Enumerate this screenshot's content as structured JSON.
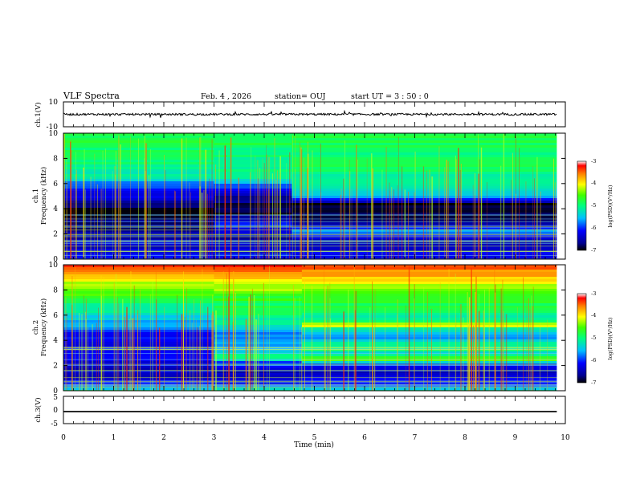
{
  "header": {
    "title": "VLF Spectra",
    "date": "Feb. 4 , 2026",
    "station": "station= OUJ",
    "start": "start UT =  3 : 50 : 0"
  },
  "chart_data": [
    {
      "id": "ch1-waveform",
      "type": "line",
      "ylabel": "ch.1(V)",
      "ylim": [
        -10,
        10
      ],
      "yticks": [
        "10",
        "-10"
      ],
      "baseline": 0,
      "noise_amplitude": 0.8,
      "x_end_min": 9.83
    },
    {
      "id": "ch1-spectrogram",
      "type": "heatmap",
      "ylabel_lines": [
        "ch.1",
        "Frequency (kHz)"
      ],
      "ylim": [
        0,
        10
      ],
      "yticks": [
        "0",
        "2",
        "4",
        "6",
        "8",
        "10"
      ],
      "x_end_min": 9.83,
      "colorbar": {
        "label": "log(PSD)(V²/Hz)",
        "range": [
          -7,
          -3
        ],
        "ticks": [
          "-3",
          "-4",
          "-5",
          "-6",
          "-7"
        ]
      },
      "segments": [
        {
          "t": [
            0,
            3.0
          ],
          "profile": [
            [
              0,
              -6.0
            ],
            [
              0.8,
              -6.3
            ],
            [
              1.5,
              -6.5
            ],
            [
              2.5,
              -6.7
            ],
            [
              3.5,
              -6.9
            ],
            [
              4.2,
              -6.8
            ],
            [
              5.0,
              -6.3
            ],
            [
              5.8,
              -5.9
            ],
            [
              6.6,
              -5.2
            ],
            [
              7.5,
              -5.0
            ],
            [
              10,
              -4.8
            ]
          ]
        },
        {
          "t": [
            3.0,
            4.55
          ],
          "profile": [
            [
              0,
              -6.0
            ],
            [
              1.5,
              -6.6
            ],
            [
              2.2,
              -6.4
            ],
            [
              2.7,
              -6.0
            ],
            [
              3.2,
              -6.6
            ],
            [
              4.0,
              -6.9
            ],
            [
              5.0,
              -6.6
            ],
            [
              5.8,
              -5.8
            ],
            [
              6.6,
              -5.1
            ],
            [
              10,
              -4.8
            ]
          ]
        },
        {
          "t": [
            4.55,
            9.83
          ],
          "profile": [
            [
              0,
              -6.0
            ],
            [
              1.5,
              -6.6
            ],
            [
              2.2,
              -5.7
            ],
            [
              2.7,
              -6.4
            ],
            [
              3.2,
              -6.8
            ],
            [
              4.4,
              -6.9
            ],
            [
              4.8,
              -5.8
            ],
            [
              5.5,
              -5.3
            ],
            [
              6.6,
              -5.0
            ],
            [
              10,
              -4.8
            ]
          ]
        }
      ]
    },
    {
      "id": "ch2-spectrogram",
      "type": "heatmap",
      "ylabel_lines": [
        "ch.2",
        "Frequency (kHz)"
      ],
      "ylim": [
        0,
        10
      ],
      "yticks": [
        "0",
        "2",
        "4",
        "6",
        "8",
        "10"
      ],
      "x_end_min": 9.83,
      "colorbar": {
        "label": "log(PSD)(V²/Hz)",
        "range": [
          -7,
          -3
        ],
        "ticks": [
          "-3",
          "-4",
          "-5",
          "-6",
          "-7"
        ]
      },
      "segments": [
        {
          "t": [
            0,
            3.0
          ],
          "profile": [
            [
              0,
              -5.2
            ],
            [
              0.6,
              -6.2
            ],
            [
              1.5,
              -6.5
            ],
            [
              2.5,
              -6.1
            ],
            [
              3.5,
              -6.3
            ],
            [
              4.5,
              -6.1
            ],
            [
              5.5,
              -5.5
            ],
            [
              7.0,
              -4.9
            ],
            [
              8.5,
              -4.2
            ],
            [
              10,
              -3.3
            ]
          ]
        },
        {
          "t": [
            3.0,
            4.75
          ],
          "profile": [
            [
              0,
              -5.2
            ],
            [
              0.6,
              -6.2
            ],
            [
              1.5,
              -6.4
            ],
            [
              2.3,
              -5.8
            ],
            [
              2.6,
              -4.9
            ],
            [
              3.0,
              -5.3
            ],
            [
              3.6,
              -5.6
            ],
            [
              4.4,
              -5.8
            ],
            [
              5.5,
              -5.1
            ],
            [
              7.0,
              -4.8
            ],
            [
              8.5,
              -4.1
            ],
            [
              10,
              -3.3
            ]
          ]
        },
        {
          "t": [
            4.75,
            9.83
          ],
          "profile": [
            [
              0,
              -5.2
            ],
            [
              0.6,
              -6.2
            ],
            [
              1.5,
              -6.4
            ],
            [
              2.2,
              -5.8
            ],
            [
              2.5,
              -4.3
            ],
            [
              2.9,
              -5.3
            ],
            [
              3.5,
              -4.9
            ],
            [
              4.2,
              -5.6
            ],
            [
              4.9,
              -5.3
            ],
            [
              5.2,
              -3.9
            ],
            [
              5.6,
              -5.2
            ],
            [
              7.0,
              -4.8
            ],
            [
              8.5,
              -4.1
            ],
            [
              10,
              -3.3
            ]
          ]
        }
      ]
    },
    {
      "id": "ch3-waveform",
      "type": "line",
      "ylabel": "ch.3(V)",
      "ylim": [
        -5,
        5
      ],
      "yticks": [
        "5",
        "0",
        "-5"
      ],
      "baseline": -0.6,
      "band_half_height": 0.25,
      "x_end_min": 9.83
    }
  ],
  "x_axis": {
    "label": "Time  (min)",
    "ticks": [
      "0",
      "1",
      "2",
      "3",
      "4",
      "5",
      "6",
      "7",
      "8",
      "9",
      "10"
    ],
    "xlim": [
      0,
      10
    ]
  }
}
